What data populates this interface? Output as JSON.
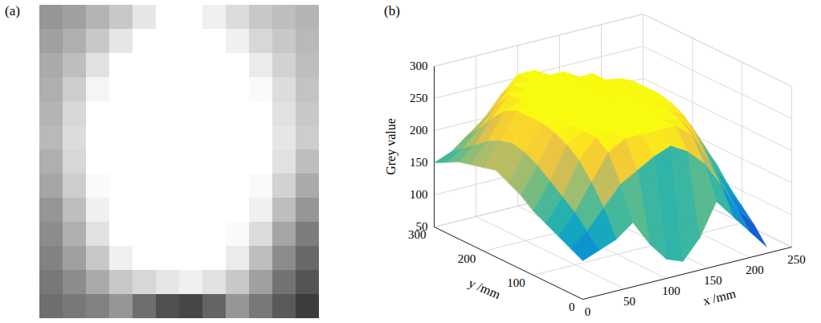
{
  "chart_data": {
    "type": "surface",
    "panel_labels": [
      "(a)",
      "(b)"
    ],
    "xlabel": "x /mm",
    "ylabel": "y /mm",
    "zlabel": "Grey value",
    "x": [
      0,
      20,
      40,
      60,
      80,
      100,
      120,
      140,
      160,
      180,
      200,
      220
    ],
    "y": [
      0,
      25,
      50,
      75,
      100,
      125,
      150,
      175,
      200,
      225,
      250,
      275,
      300
    ],
    "z": [
      [
        110,
        120,
        130,
        150,
        110,
        80,
        70,
        100,
        150,
        120,
        90,
        60
      ],
      [
        120,
        140,
        170,
        200,
        215,
        230,
        240,
        225,
        200,
        160,
        115,
        85
      ],
      [
        130,
        160,
        200,
        240,
        255,
        255,
        255,
        255,
        235,
        190,
        140,
        105
      ],
      [
        140,
        175,
        225,
        255,
        255,
        255,
        255,
        255,
        250,
        220,
        165,
        125
      ],
      [
        150,
        190,
        240,
        255,
        255,
        255,
        255,
        255,
        255,
        240,
        190,
        150
      ],
      [
        165,
        205,
        250,
        255,
        255,
        255,
        255,
        255,
        255,
        250,
        210,
        170
      ],
      [
        175,
        215,
        255,
        255,
        255,
        255,
        255,
        255,
        255,
        255,
        225,
        190
      ],
      [
        185,
        220,
        255,
        255,
        255,
        255,
        255,
        255,
        255,
        255,
        230,
        205
      ],
      [
        180,
        215,
        255,
        255,
        255,
        255,
        255,
        255,
        255,
        255,
        225,
        200
      ],
      [
        175,
        205,
        245,
        255,
        255,
        255,
        255,
        255,
        255,
        250,
        220,
        195
      ],
      [
        170,
        190,
        225,
        255,
        255,
        255,
        255,
        255,
        255,
        235,
        210,
        190
      ],
      [
        160,
        175,
        200,
        230,
        255,
        255,
        255,
        255,
        240,
        215,
        200,
        185
      ],
      [
        150,
        160,
        180,
        200,
        230,
        255,
        255,
        240,
        220,
        200,
        190,
        180
      ]
    ],
    "xlim": [
      0,
      250
    ],
    "xticks": [
      0,
      50,
      100,
      150,
      200,
      250
    ],
    "ylim": [
      0,
      300
    ],
    "yticks": [
      0,
      100,
      200,
      300
    ],
    "zlim": [
      50,
      300
    ],
    "zticks": [
      50,
      100,
      150,
      200,
      250,
      300
    ],
    "grid": true
  }
}
